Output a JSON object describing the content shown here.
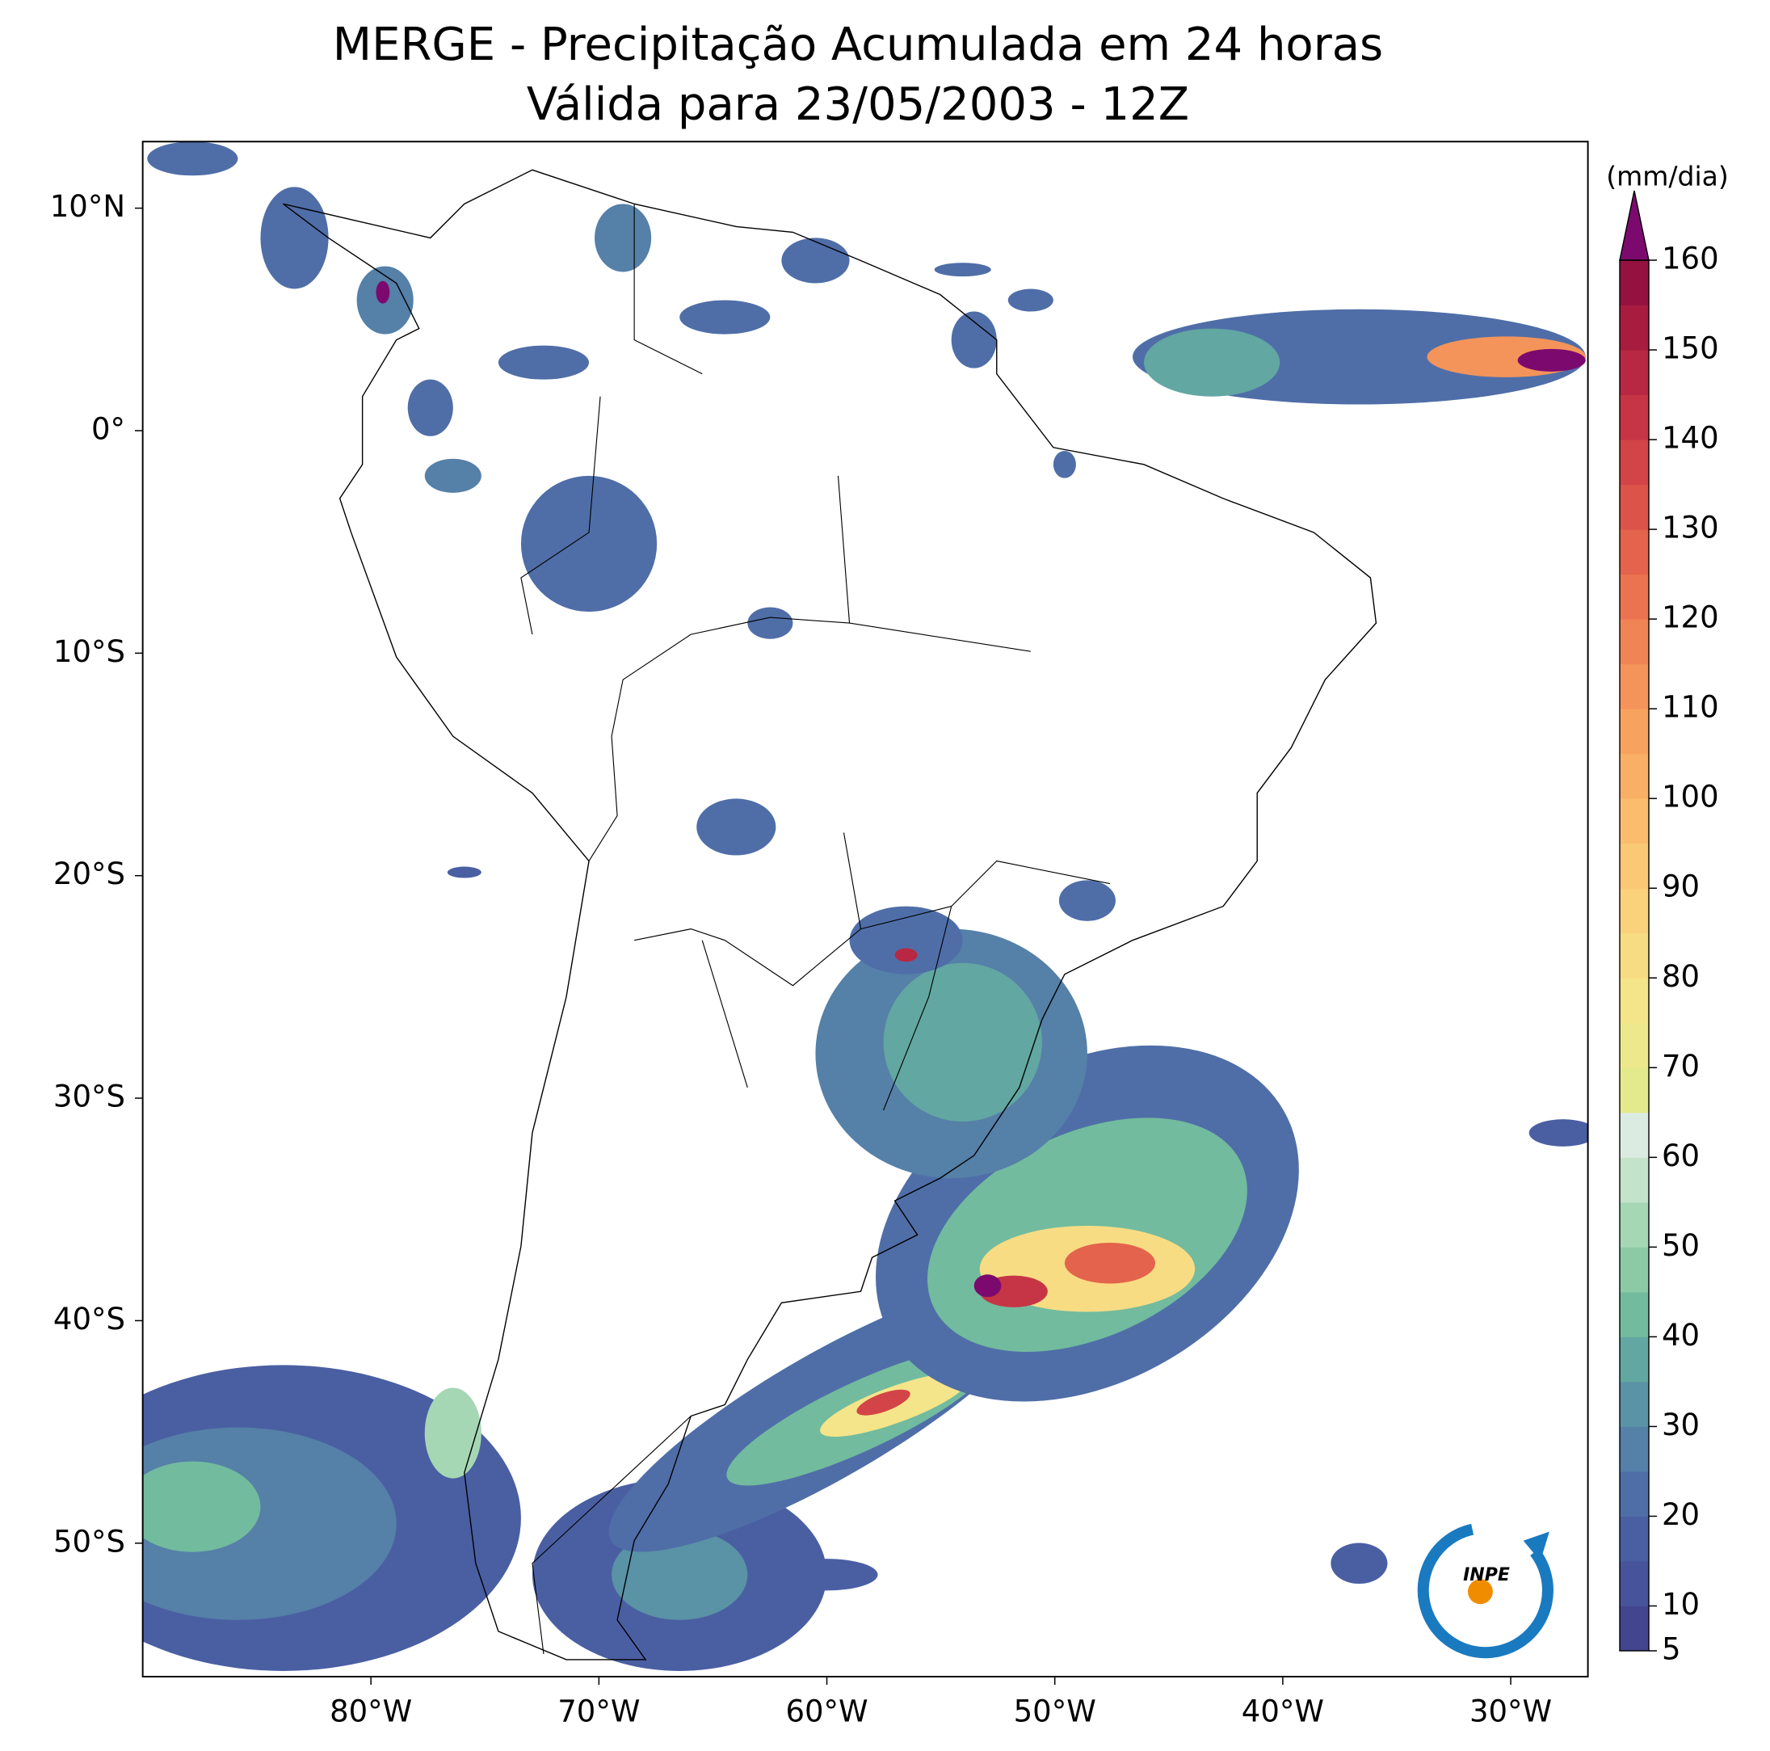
{
  "title": [
    "MERGE - Precipitação Acumulada em 24 horas",
    "Válida para 23/05/2003 - 12Z"
  ],
  "map": {
    "xlim": [
      -90,
      -26.6
    ],
    "ylim": [
      -56,
      13
    ],
    "xticks": [
      {
        "value": -80,
        "label": "80°W"
      },
      {
        "value": -70,
        "label": "70°W"
      },
      {
        "value": -60,
        "label": "60°W"
      },
      {
        "value": -50,
        "label": "50°W"
      },
      {
        "value": -40,
        "label": "40°W"
      },
      {
        "value": -30,
        "label": "30°W"
      }
    ],
    "yticks": [
      {
        "value": 10,
        "label": "10°N"
      },
      {
        "value": 0,
        "label": "0°"
      },
      {
        "value": -10,
        "label": "10°S"
      },
      {
        "value": -20,
        "label": "20°S"
      },
      {
        "value": -30,
        "label": "30°S"
      },
      {
        "value": -40,
        "label": "40°S"
      },
      {
        "value": -50,
        "label": "50°S"
      }
    ]
  },
  "colorbar": {
    "label": "(mm/dia)",
    "lim": [
      5,
      160
    ],
    "ticks": [
      5,
      10,
      20,
      30,
      40,
      50,
      60,
      70,
      80,
      90,
      100,
      110,
      120,
      130,
      140,
      150,
      160
    ],
    "colors": [
      "#43468f",
      "#47539a",
      "#4a5fa2",
      "#4f6ea8",
      "#5580a8",
      "#5a92a6",
      "#62a7a2",
      "#72bb9e",
      "#8ccaa6",
      "#a6d7b4",
      "#c3e3cb",
      "#dcebe2",
      "#e3ea8c",
      "#ede88b",
      "#f4e48a",
      "#f8dc84",
      "#fad27c",
      "#fbc875",
      "#fbbd6d",
      "#f9b066",
      "#f7a35f",
      "#f4945a",
      "#f08455",
      "#eb7350",
      "#e4634c",
      "#dc5349",
      "#d24447",
      "#c63545",
      "#b82842",
      "#a81c40",
      "#951240"
    ],
    "extend_color": "#7c0a6e"
  },
  "logo": {
    "text": "INPE"
  }
}
